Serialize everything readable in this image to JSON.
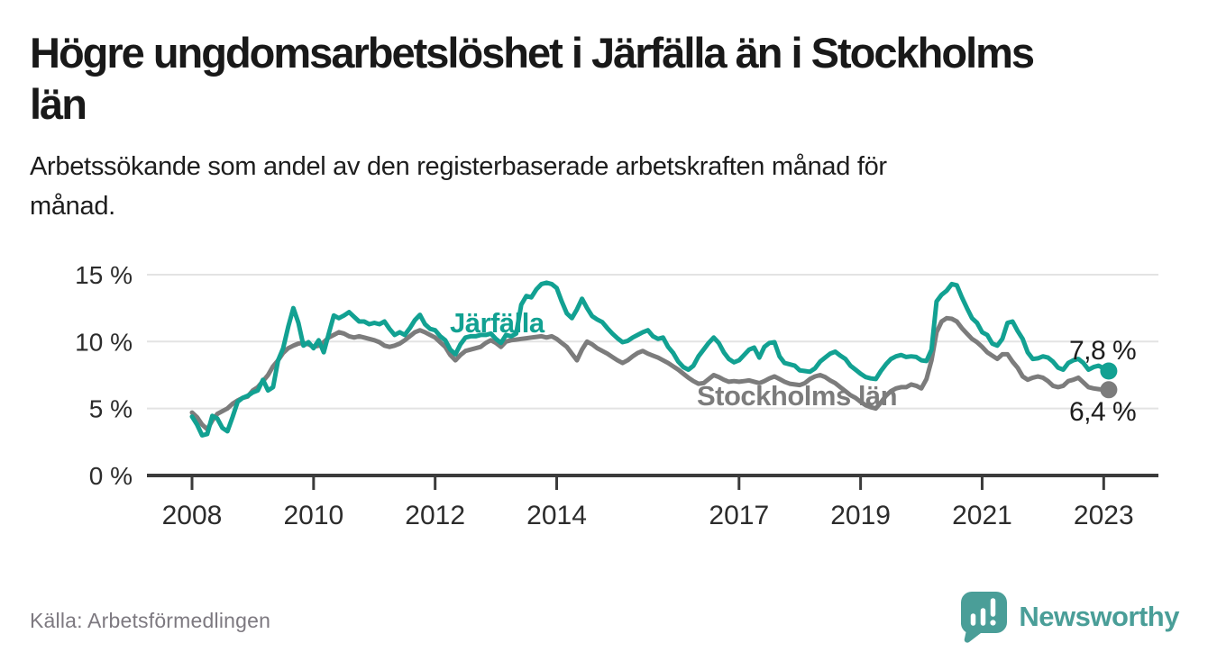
{
  "header": {
    "title": "Högre ungdomsarbetslöshet i Järfälla än i Stockholms län",
    "title_lines": [
      "Högre ungdomsarbetslöshet i Järfälla än i Stockholms",
      "län"
    ],
    "subtitle": "Arbetssökande som andel av den registerbaserade arbetskraften månad för månad.",
    "subtitle_lines": [
      "Arbetssökande som andel av den registerbaserade arbetskraften månad för",
      "månad."
    ]
  },
  "footer": {
    "source": "Källa: Arbetsförmedlingen",
    "logo_text": "Newsworthy"
  },
  "colors": {
    "jarfalla_teal": "#12a192",
    "stockholm_gray": "#7c7c7c",
    "logo_teal": "#4a9e98",
    "axis_dark": "#3b3b3b",
    "gridline": "#e3e3e3",
    "text_dark": "#191919",
    "source_gray": "#7d7980"
  },
  "chart_data": {
    "type": "line",
    "unit": "%",
    "frequency": "monthly",
    "x_start": "2008-01",
    "x_end": "2023-02",
    "grid": true,
    "legend_position": "inline-labels",
    "x_axis": {
      "ticks": [
        {
          "year": 2008,
          "label": "2008"
        },
        {
          "year": 2010,
          "label": "2010"
        },
        {
          "year": 2012,
          "label": "2012"
        },
        {
          "year": 2014,
          "label": "2014"
        },
        {
          "year": 2017,
          "label": "2017"
        },
        {
          "year": 2019,
          "label": "2019"
        },
        {
          "year": 2021,
          "label": "2021"
        },
        {
          "year": 2023,
          "label": "2023"
        }
      ]
    },
    "y_axis": {
      "range": [
        0,
        15.5
      ],
      "ticks": [
        {
          "value": 0,
          "label": "0 %"
        },
        {
          "value": 5,
          "label": "5 %"
        },
        {
          "value": 10,
          "label": "10 %"
        },
        {
          "value": 15,
          "label": "15 %"
        }
      ]
    },
    "series": [
      {
        "name": "Järfälla",
        "color": "#12a192",
        "values": [
          4.4,
          3.8,
          3.0,
          3.1,
          4.45,
          4.25,
          3.55,
          3.3,
          4.35,
          5.5,
          5.8,
          5.95,
          6.2,
          6.35,
          7.15,
          6.35,
          6.6,
          8.6,
          9.5,
          11.1,
          12.5,
          11.4,
          9.7,
          9.95,
          9.5,
          10.1,
          9.2,
          10.6,
          11.95,
          11.75,
          11.95,
          12.2,
          11.85,
          11.5,
          11.5,
          11.3,
          11.4,
          11.3,
          11.5,
          10.95,
          10.5,
          10.7,
          10.5,
          11.0,
          11.6,
          12.0,
          11.3,
          10.95,
          10.85,
          10.4,
          10.1,
          9.4,
          9.05,
          9.8,
          10.3,
          10.4,
          10.4,
          10.5,
          10.5,
          10.6,
          10.2,
          9.9,
          10.5,
          10.4,
          10.6,
          12.75,
          13.4,
          13.3,
          13.9,
          14.3,
          14.4,
          14.3,
          14.0,
          13.0,
          12.1,
          11.75,
          12.4,
          13.2,
          12.5,
          11.9,
          11.65,
          11.45,
          11.0,
          10.6,
          10.25,
          9.95,
          10.05,
          10.3,
          10.5,
          10.7,
          10.85,
          10.4,
          10.2,
          10.3,
          9.6,
          9.15,
          8.5,
          8.1,
          7.9,
          8.2,
          8.9,
          9.4,
          9.9,
          10.3,
          9.9,
          9.2,
          8.7,
          8.45,
          8.6,
          9.0,
          9.4,
          9.55,
          8.8,
          9.6,
          9.9,
          9.95,
          8.9,
          8.4,
          8.3,
          8.2,
          7.85,
          7.8,
          7.75,
          8.0,
          8.5,
          8.8,
          9.1,
          9.25,
          8.95,
          8.7,
          8.2,
          7.9,
          7.6,
          7.35,
          7.25,
          7.2,
          7.8,
          8.3,
          8.7,
          8.9,
          9.0,
          8.85,
          8.9,
          8.85,
          8.6,
          8.55,
          9.4,
          13.0,
          13.5,
          13.8,
          14.3,
          14.2,
          13.3,
          12.5,
          11.75,
          11.4,
          10.7,
          10.5,
          9.85,
          9.7,
          10.2,
          11.4,
          11.5,
          10.8,
          10.2,
          9.2,
          8.7,
          8.75,
          8.9,
          8.8,
          8.5,
          8.05,
          7.9,
          8.4,
          8.6,
          8.7,
          8.4,
          7.9,
          8.1,
          8.2,
          8.0,
          7.8
        ]
      },
      {
        "name": "Stockholms län",
        "color": "#7c7c7c",
        "values": [
          4.7,
          4.35,
          3.8,
          3.45,
          4.1,
          4.6,
          4.8,
          5.0,
          5.35,
          5.6,
          5.8,
          5.9,
          6.35,
          6.6,
          7.05,
          7.5,
          8.15,
          8.6,
          9.15,
          9.5,
          9.7,
          9.85,
          9.9,
          9.8,
          9.6,
          9.7,
          9.95,
          10.3,
          10.5,
          10.7,
          10.6,
          10.4,
          10.3,
          10.4,
          10.3,
          10.2,
          10.1,
          9.95,
          9.7,
          9.6,
          9.7,
          9.85,
          10.1,
          10.4,
          10.7,
          10.85,
          10.7,
          10.5,
          10.3,
          9.95,
          9.6,
          9.0,
          8.6,
          9.0,
          9.3,
          9.4,
          9.5,
          9.6,
          9.9,
          10.1,
          9.9,
          9.6,
          10.0,
          10.1,
          10.15,
          10.2,
          10.25,
          10.3,
          10.35,
          10.4,
          10.3,
          10.4,
          10.2,
          9.9,
          9.6,
          9.1,
          8.6,
          9.4,
          10.0,
          9.8,
          9.5,
          9.3,
          9.1,
          8.85,
          8.6,
          8.4,
          8.6,
          8.9,
          9.15,
          9.3,
          9.1,
          8.95,
          8.8,
          8.6,
          8.4,
          8.15,
          7.9,
          7.6,
          7.3,
          7.05,
          6.85,
          6.9,
          7.2,
          7.5,
          7.35,
          7.15,
          7.0,
          7.05,
          7.0,
          7.05,
          7.1,
          7.0,
          6.9,
          7.05,
          7.25,
          7.4,
          7.2,
          7.0,
          6.85,
          6.8,
          6.75,
          6.9,
          7.2,
          7.4,
          7.5,
          7.35,
          7.1,
          6.9,
          6.6,
          6.3,
          6.0,
          5.8,
          5.5,
          5.25,
          5.1,
          5.0,
          5.45,
          5.95,
          6.3,
          6.5,
          6.6,
          6.6,
          6.8,
          6.7,
          6.5,
          7.2,
          8.6,
          10.7,
          11.5,
          11.75,
          11.7,
          11.5,
          11.0,
          10.6,
          10.2,
          9.95,
          9.6,
          9.2,
          8.95,
          8.7,
          9.05,
          9.05,
          8.5,
          8.05,
          7.4,
          7.15,
          7.3,
          7.4,
          7.3,
          7.05,
          6.7,
          6.6,
          6.7,
          7.05,
          7.15,
          7.3,
          6.95,
          6.6,
          6.5,
          6.45,
          6.4,
          6.4
        ]
      }
    ],
    "annotations": [
      {
        "series": "Järfälla",
        "label": "7,8 %",
        "value": 7.8
      },
      {
        "series": "Stockholms län",
        "label": "6,4 %",
        "value": 6.4
      }
    ]
  }
}
